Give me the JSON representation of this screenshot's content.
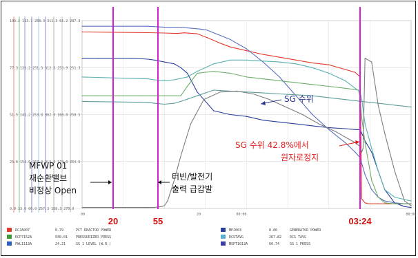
{
  "chart_data": {
    "type": "line",
    "title": "",
    "xlabel": "",
    "ylabel": "",
    "xlim": [
      0,
      100
    ],
    "ylim": [
      0,
      100
    ],
    "x_tick_labels": [
      "00",
      "20",
      "55",
      "20",
      "00:00",
      "03:24",
      "00:00"
    ],
    "y_tick_labels": [
      "103.2  113.1  268.3  311.3  61.2  287.3",
      "77.3  131.2  251.3  312.3  253.9  251.3",
      "51.5  141.2  253.8  362.5  168.8  258.5",
      "25.6  151.5  267.3  313.3  174.0  264.6",
      "0.0  33.0  00.0  257.3  168.3  270.0"
    ],
    "series": [
      {
        "name": "PCT REACTOR POWER",
        "color": "#e23b2b",
        "x": [
          0,
          10,
          20,
          25,
          29,
          31,
          35,
          38,
          42,
          45,
          50,
          55,
          60,
          65,
          70,
          75,
          80,
          83,
          84.5,
          85,
          86,
          87,
          88,
          90,
          95,
          100
        ],
        "y": [
          94,
          93.8,
          93.6,
          93.4,
          93.2,
          93.5,
          93,
          91,
          88,
          86,
          84,
          82,
          80.5,
          79,
          77.5,
          76.5,
          74,
          72.5,
          70,
          5,
          3,
          2.5,
          2.5,
          2.5,
          2.5,
          2.5
        ]
      },
      {
        "name": "GENERATOR POWER",
        "color": "#2a3f9e",
        "x": [
          0,
          5,
          10,
          15,
          20,
          22,
          25,
          28,
          30,
          32,
          35,
          40,
          45,
          50,
          55,
          60,
          65,
          70,
          75,
          80,
          83,
          84.5,
          85,
          86,
          88,
          90,
          92,
          95,
          98,
          100
        ],
        "y": [
          80,
          80,
          80,
          80,
          79.5,
          79,
          78,
          77,
          75,
          72,
          62,
          52,
          50,
          49,
          47,
          46,
          45,
          44,
          43,
          42.5,
          42,
          42,
          40,
          36,
          30,
          20,
          10,
          3,
          1,
          0.5
        ]
      },
      {
        "name": "SG 1 LEVEL (W.R.)",
        "color": "#5a6fbf",
        "x": [
          0,
          10,
          20,
          25,
          30,
          33,
          36,
          38,
          40,
          45,
          50,
          55,
          60,
          65,
          70,
          75,
          80,
          83,
          84.5,
          85,
          86,
          88,
          90,
          92,
          95,
          98,
          100
        ],
        "y": [
          97,
          97,
          97,
          96.5,
          96.5,
          96,
          95.5,
          95,
          93.5,
          90,
          85,
          78,
          70,
          60,
          50,
          42,
          35,
          30,
          27,
          24,
          18,
          10,
          6,
          4,
          3,
          2.5,
          2.5
        ]
      },
      {
        "name": "PRESSURIZER PRESS",
        "color": "#6fae6a",
        "x": [
          0,
          5,
          10,
          18,
          22,
          25,
          30,
          32,
          35,
          40,
          45,
          50,
          55,
          60,
          65,
          70,
          75,
          80,
          84,
          84.5,
          85,
          86,
          88,
          90,
          92,
          95,
          100
        ],
        "y": [
          60,
          60,
          60,
          60,
          60,
          60,
          60,
          65,
          72,
          73,
          72,
          70,
          69,
          68,
          67,
          66,
          65,
          64,
          63,
          59,
          48,
          35,
          15,
          6,
          3,
          2.5,
          2.5
        ]
      },
      {
        "name": "RCS TAVG",
        "color": "#5ab0b0",
        "x": [
          0,
          10,
          20,
          22,
          25,
          28,
          32,
          35,
          40,
          45,
          50,
          55,
          60,
          65,
          70,
          75,
          80,
          83,
          84.5,
          85,
          86,
          88,
          90,
          92,
          95,
          100
        ],
        "y": [
          70,
          69.5,
          69,
          68.5,
          68,
          68.5,
          70,
          73,
          77,
          79,
          79,
          78.5,
          78,
          77,
          75,
          72,
          68,
          64,
          62,
          58,
          45,
          32,
          20,
          10,
          6,
          4
        ]
      },
      {
        "name": "SG 1 PRESS",
        "color": "#5a9e9a",
        "x": [
          0,
          20,
          22,
          25,
          28,
          30,
          35,
          40,
          45,
          50,
          55,
          60,
          65,
          70,
          75,
          80,
          85,
          90,
          95,
          100
        ],
        "y": [
          57,
          56.5,
          56,
          55.5,
          56,
          57,
          60,
          63,
          62.5,
          62,
          61.5,
          61,
          60.5,
          60,
          59,
          58,
          57,
          56,
          55,
          54
        ]
      },
      {
        "name": "BCJA007",
        "color": "#7d7d7d",
        "x": [
          0,
          20,
          22,
          24,
          25,
          26,
          28,
          30,
          33,
          37,
          42,
          47,
          52,
          57,
          62,
          67,
          72,
          77,
          80,
          83,
          84.5,
          85,
          85.4,
          86,
          88,
          90,
          92,
          95,
          98,
          100
        ],
        "y": [
          0.5,
          0.5,
          0.6,
          1,
          1.5,
          4,
          15,
          28,
          45,
          58,
          62,
          62.5,
          61,
          58,
          54,
          50,
          45,
          41,
          38,
          35,
          33,
          30,
          32,
          80,
          78,
          55,
          40,
          20,
          4,
          1.5
        ]
      }
    ],
    "annotations": [
      "MFWP 01",
      "재순환밸브",
      "비정상 Open",
      "터빈/발전기",
      "출력 급감발",
      "SG 수위",
      "SG 수위 42.8%에서",
      "원자로정지"
    ],
    "event_markers": [
      "20",
      "55",
      "03:24"
    ],
    "legend": [
      {
        "tag": "RCJA007",
        "value": "0.79",
        "label": "PCT REACTOR POWER",
        "color": "#e23b2b"
      },
      {
        "tag": "RCP7152A",
        "value": "540.01",
        "label": "PRESSURIZER PRESS",
        "color": "#3a9a3a"
      },
      {
        "tag": "FWL1113A",
        "value": "24.21",
        "label": "SG 1 LEVEL (W.R.)",
        "color": "#2a5fbf"
      },
      {
        "tag": "MPJ003",
        "value": "0.00",
        "label": "GENERATOR POWER",
        "color": "#2a3f9e"
      },
      {
        "tag": "RCSTAVG",
        "value": "267.82",
        "label": "RCS TAVG",
        "color": "#5ab0d0"
      },
      {
        "tag": "MSPT1013A",
        "value": "60.74",
        "label": "SG 1 PRESS",
        "color": "#3a3fa8"
      }
    ],
    "grid": true,
    "legend_position": "bottom",
    "accent_color": "#d71fd0",
    "annotation_color": "#e02020"
  }
}
